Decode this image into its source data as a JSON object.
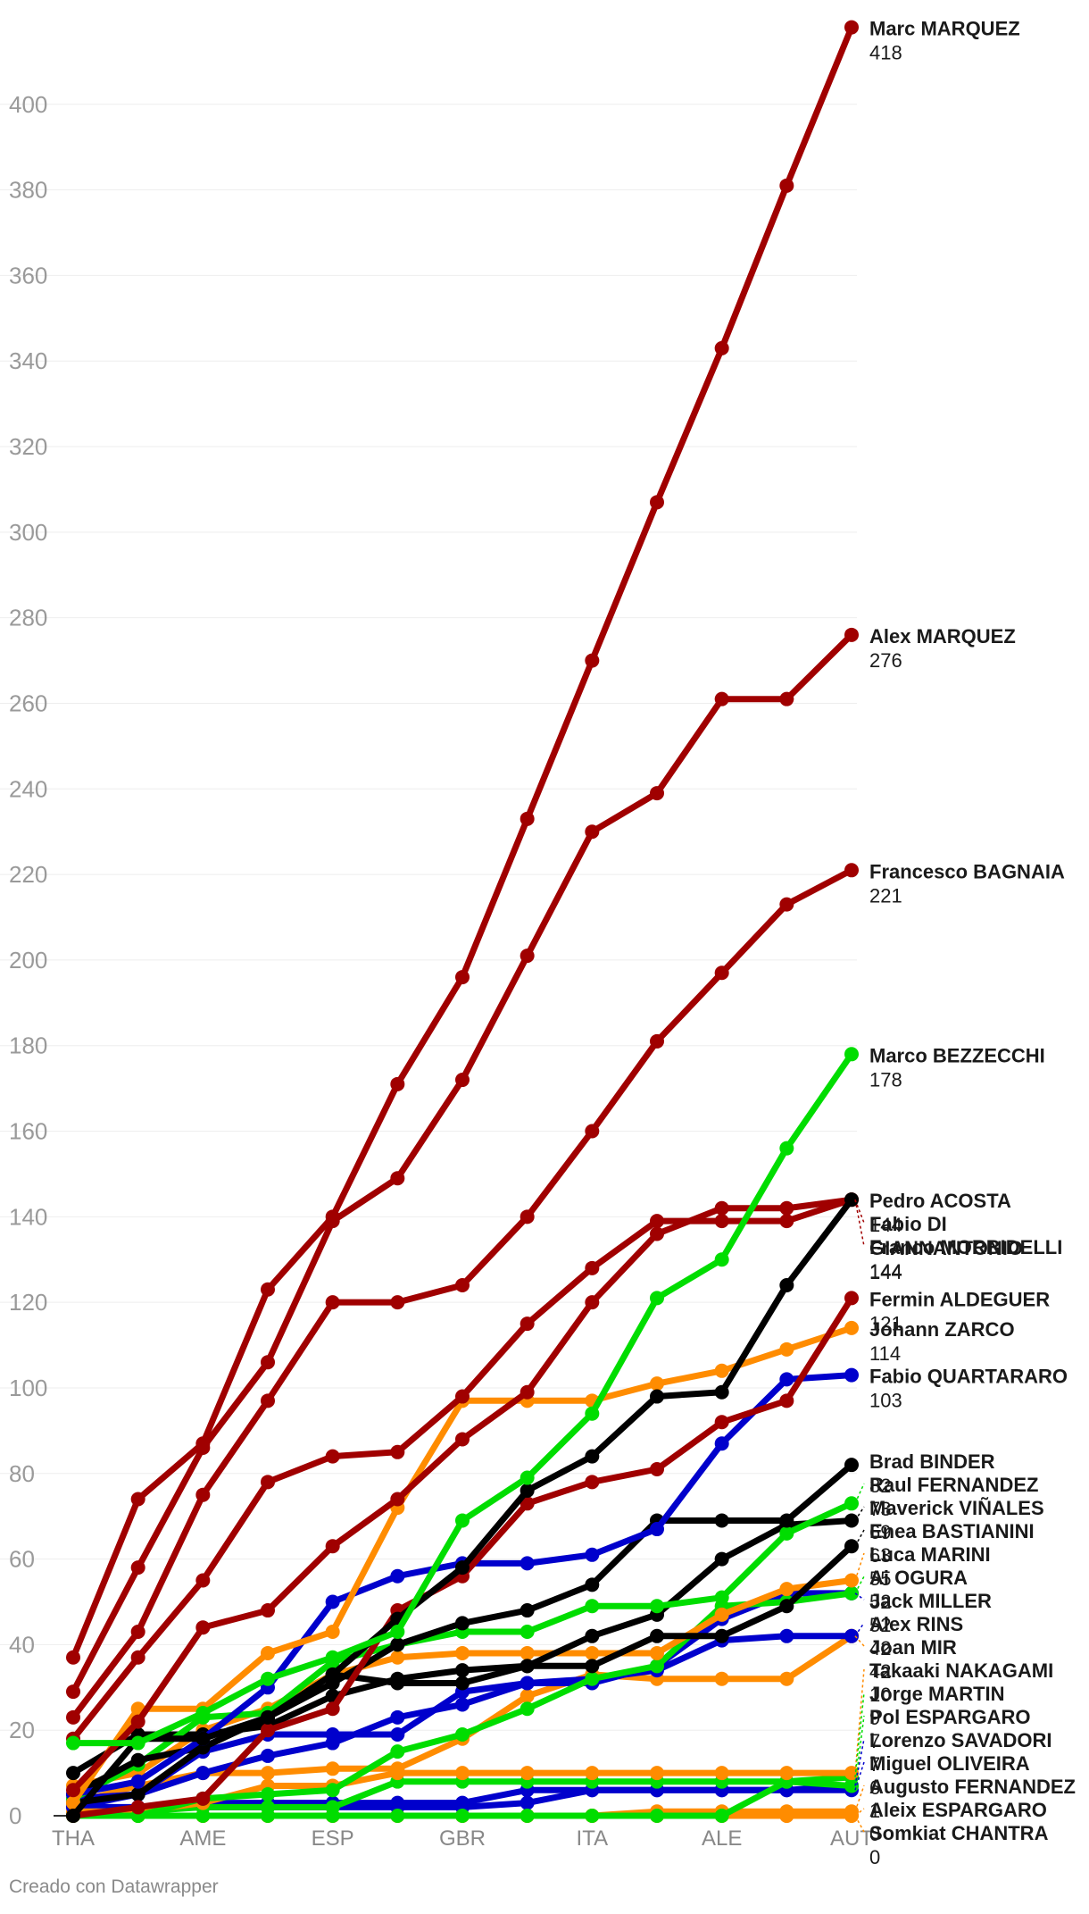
{
  "colors": {
    "red": "#a00000",
    "green": "#00dd00",
    "blue": "#0000cc",
    "orange": "#ff8c00",
    "black": "#000000"
  },
  "credit": "Creado con Datawrapper",
  "chart_data": {
    "type": "line",
    "title": "",
    "xlabel": "",
    "ylabel": "",
    "ylim": [
      0,
      420
    ],
    "yticks": [
      0,
      20,
      40,
      60,
      80,
      100,
      120,
      140,
      160,
      180,
      200,
      220,
      240,
      260,
      280,
      300,
      320,
      340,
      360,
      380,
      400
    ],
    "grid": true,
    "legend": "labels at line ends (right)",
    "x_tick_labels": [
      "THA",
      "AME",
      "ESP",
      "GBR",
      "ITA",
      "ALE",
      "AUT"
    ],
    "x_tick_positions": [
      0,
      2,
      4,
      6,
      8,
      10,
      12
    ],
    "x": [
      0,
      1,
      2,
      3,
      4,
      5,
      6,
      7,
      8,
      9,
      10,
      11,
      12
    ],
    "series": [
      {
        "name": "Marc MARQUEZ",
        "value_label": "418",
        "color": "red",
        "values": [
          37,
          74,
          87,
          123,
          140,
          171,
          196,
          233,
          270,
          307,
          343,
          381,
          418
        ]
      },
      {
        "name": "Alex MARQUEZ",
        "value_label": "276",
        "color": "red",
        "values": [
          29,
          58,
          86,
          106,
          139,
          149,
          172,
          201,
          230,
          239,
          261,
          261,
          276
        ]
      },
      {
        "name": "Francesco BAGNAIA",
        "value_label": "221",
        "color": "red",
        "values": [
          23,
          43,
          75,
          97,
          120,
          120,
          124,
          140,
          160,
          181,
          197,
          213,
          221
        ]
      },
      {
        "name": "Marco BEZZECCHI",
        "value_label": "178",
        "color": "green",
        "values": [
          17,
          17,
          24,
          32,
          37,
          43,
          69,
          79,
          94,
          121,
          130,
          156,
          178
        ]
      },
      {
        "name": "Pedro ACOSTA",
        "value_label": "144",
        "color": "black",
        "values": [
          0,
          18,
          18,
          23,
          33,
          46,
          58,
          76,
          84,
          98,
          99,
          124,
          144
        ]
      },
      {
        "name": "Fabio DI GIANNANTONIO",
        "value_label": "144",
        "color": "red",
        "values": [
          18,
          37,
          55,
          78,
          84,
          85,
          98,
          115,
          128,
          139,
          139,
          139,
          144
        ]
      },
      {
        "name": "Franco MORBIDELLI",
        "value_label": "144",
        "color": "red",
        "values": [
          6,
          22,
          44,
          48,
          63,
          74,
          88,
          99,
          120,
          136,
          142,
          142,
          144
        ]
      },
      {
        "name": "Fermin ALDEGUER",
        "value_label": "121",
        "color": "red",
        "values": [
          0,
          2,
          4,
          20,
          25,
          48,
          56,
          73,
          78,
          81,
          92,
          97,
          121
        ]
      },
      {
        "name": "Johann ZARCO",
        "value_label": "114",
        "color": "orange",
        "values": [
          3,
          25,
          25,
          38,
          43,
          72,
          97,
          97,
          97,
          101,
          104,
          109,
          114
        ]
      },
      {
        "name": "Fabio QUARTARARO",
        "value_label": "103",
        "color": "blue",
        "values": [
          5,
          8,
          18,
          30,
          50,
          56,
          59,
          59,
          61,
          67,
          87,
          102,
          103
        ]
      },
      {
        "name": "Brad BINDER",
        "value_label": "82",
        "color": "black",
        "values": [
          5,
          13,
          16,
          23,
          31,
          40,
          45,
          48,
          54,
          69,
          69,
          69,
          82
        ]
      },
      {
        "name": "Raul FERNANDEZ",
        "value_label": "73",
        "color": "green",
        "values": [
          4,
          12,
          23,
          24,
          36,
          40,
          43,
          43,
          49,
          49,
          51,
          66,
          73
        ]
      },
      {
        "name": "Maverick VIÑALES",
        "value_label": "69",
        "color": "black",
        "values": [
          10,
          19,
          19,
          21,
          28,
          32,
          34,
          35,
          42,
          47,
          60,
          68,
          69
        ]
      },
      {
        "name": "Enea BASTIANINI",
        "value_label": "63",
        "color": "black",
        "values": [
          3,
          5,
          16,
          23,
          33,
          31,
          31,
          35,
          35,
          42,
          42,
          49,
          63
        ]
      },
      {
        "name": "Luca MARINI",
        "value_label": "55",
        "color": "orange",
        "values": [
          7,
          10,
          20,
          25,
          33,
          37,
          38,
          38,
          38,
          38,
          47,
          53,
          55
        ]
      },
      {
        "name": "Ai OGURA",
        "value_label": "52",
        "color": "green",
        "values": [
          0,
          0,
          4,
          5,
          6,
          15,
          19,
          25,
          32,
          35,
          49,
          50,
          52
        ]
      },
      {
        "name": "Jack MILLER",
        "value_label": "52",
        "color": "blue",
        "values": [
          2,
          5,
          10,
          14,
          17,
          23,
          26,
          31,
          31,
          35,
          46,
          52,
          52
        ]
      },
      {
        "name": "Alex RINS",
        "value_label": "42",
        "color": "blue",
        "values": [
          4,
          5,
          15,
          19,
          19,
          19,
          29,
          31,
          32,
          34,
          41,
          42,
          42
        ]
      },
      {
        "name": "Joan MIR",
        "value_label": "42",
        "color": "orange",
        "values": [
          3,
          7,
          10,
          10,
          11,
          11,
          18,
          28,
          33,
          32,
          32,
          32,
          42
        ]
      },
      {
        "name": "Takaaki NAKAGAMI",
        "value_label": "10",
        "color": "orange",
        "values": [
          1,
          1,
          3,
          7,
          7,
          10,
          10,
          10,
          10,
          10,
          10,
          10,
          10
        ]
      },
      {
        "name": "Jorge MARTIN",
        "value_label": "9",
        "color": "green",
        "values": [
          0,
          0,
          0,
          0,
          0,
          0,
          0,
          0,
          0,
          0,
          0,
          8,
          9
        ]
      },
      {
        "name": "Pol ESPARGARO",
        "value_label": "7",
        "color": "green",
        "values": [
          0,
          1,
          2,
          2,
          2,
          8,
          8,
          8,
          8,
          8,
          8,
          8,
          7
        ]
      },
      {
        "name": "Lorenzo SAVADORI",
        "value_label": "7",
        "color": "blue",
        "values": [
          0,
          2,
          2,
          2,
          2,
          2,
          2,
          3,
          6,
          6,
          6,
          6,
          7
        ]
      },
      {
        "name": "Miguel OLIVEIRA",
        "value_label": "6",
        "color": "blue",
        "values": [
          2,
          2,
          3,
          3,
          3,
          3,
          3,
          6,
          6,
          6,
          6,
          6,
          6
        ]
      },
      {
        "name": "Augusto FERNANDEZ",
        "value_label": "1",
        "color": "orange",
        "values": [
          0,
          0,
          0,
          0,
          0,
          0,
          0,
          0,
          0,
          1,
          1,
          1,
          1
        ]
      },
      {
        "name": "Aleix ESPARGARO",
        "value_label": "0",
        "color": "orange",
        "values": [
          0,
          0,
          0,
          0,
          0,
          0,
          0,
          0,
          0,
          0,
          0,
          0,
          0
        ]
      },
      {
        "name": "Somkiat CHANTRA",
        "value_label": "0",
        "color": "orange",
        "values": [
          0,
          0,
          0,
          0,
          0,
          0,
          0,
          0,
          0,
          0,
          0,
          0,
          0
        ]
      }
    ]
  }
}
